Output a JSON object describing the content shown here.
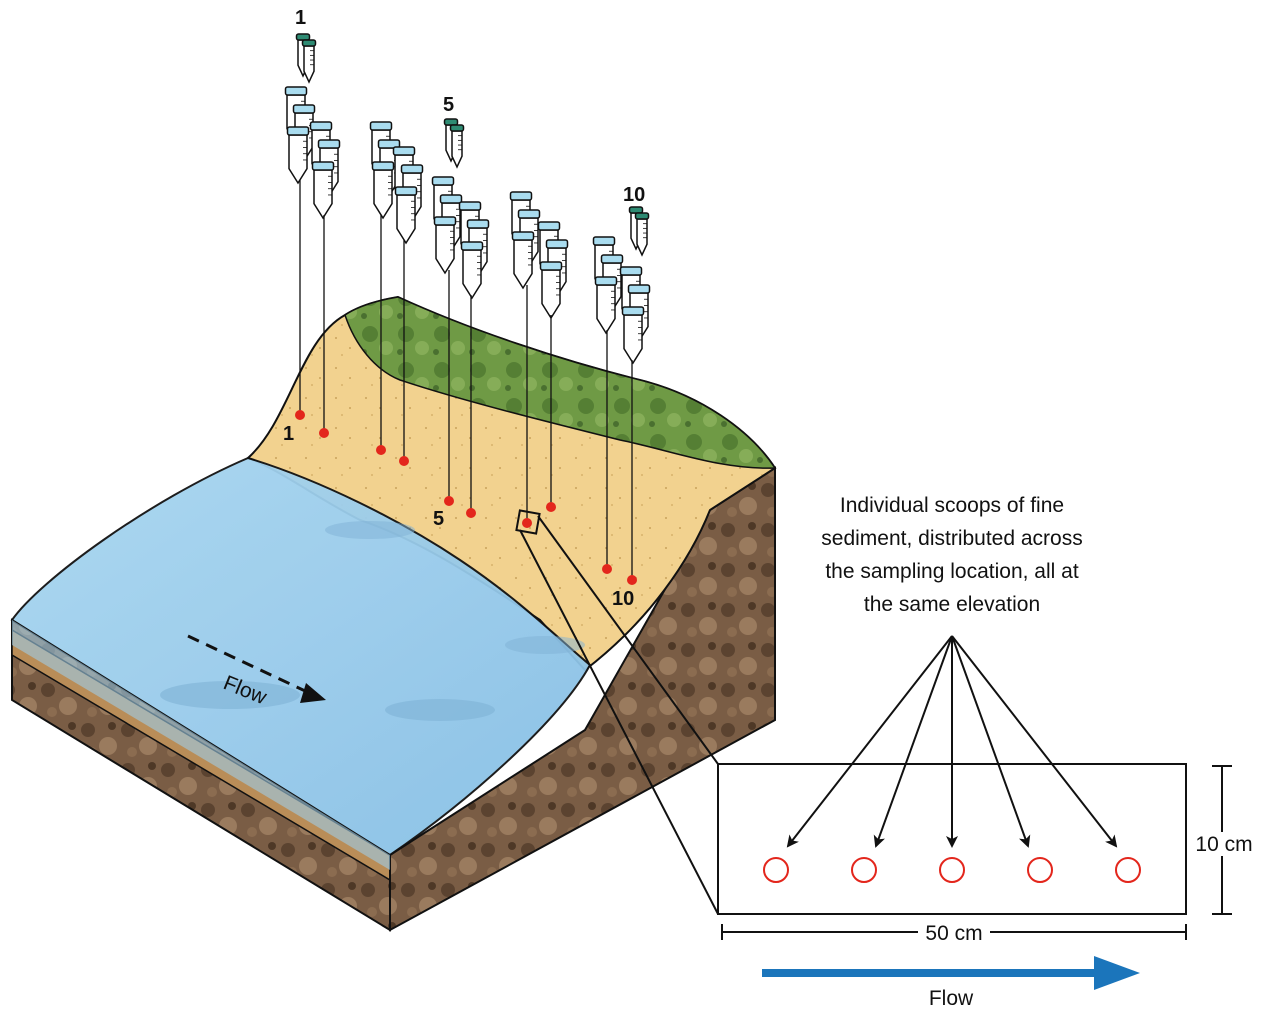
{
  "site_labels": {
    "first": "1",
    "middle": "5",
    "last": "10"
  },
  "river_label": "Flow",
  "callout": {
    "lines": [
      "Individual scoops of fine",
      "sediment, distributed across",
      "the sampling location, all at",
      "the same elevation"
    ]
  },
  "inset": {
    "width_label": "50 cm",
    "height_label": "10 cm",
    "flow_label": "Flow",
    "scoop_count": 5
  },
  "colors": {
    "water": "#9cccec",
    "sand": "#f1d08c",
    "grass": "#6f9a45",
    "soil": "#7d6148",
    "sample_point": "#e3261c",
    "scoop_circle": "#e3261c",
    "tube_cap": "#a9dcef",
    "tube_cap_green": "#2e8b73",
    "flow_arrow": "#1b75bb"
  }
}
